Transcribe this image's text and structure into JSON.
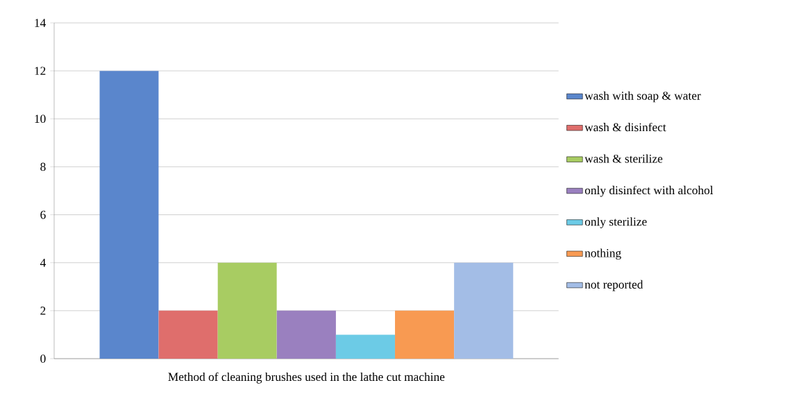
{
  "chart_data": {
    "type": "bar",
    "categories": [
      "Method of cleaning brushes used in the lathe cut machine"
    ],
    "series": [
      {
        "name": "wash with soap & water",
        "color": "#5a86cc",
        "values": [
          12
        ]
      },
      {
        "name": "wash & disinfect",
        "color": "#df6e6c",
        "values": [
          2
        ]
      },
      {
        "name": "wash & sterilize",
        "color": "#a8cc62",
        "values": [
          4
        ]
      },
      {
        "name": "only disinfect with alcohol",
        "color": "#9a80bf",
        "values": [
          2
        ]
      },
      {
        "name": "only sterilize",
        "color": "#6ccbe6",
        "values": [
          1
        ]
      },
      {
        "name": "nothing",
        "color": "#f89a52",
        "values": [
          2
        ]
      },
      {
        "name": "not reported",
        "color": "#a3bde6",
        "values": [
          4
        ]
      }
    ],
    "ylim": [
      0,
      14
    ],
    "yticks": [
      0,
      2,
      4,
      6,
      8,
      10,
      12,
      14
    ],
    "grid": "y",
    "legend": "right"
  }
}
